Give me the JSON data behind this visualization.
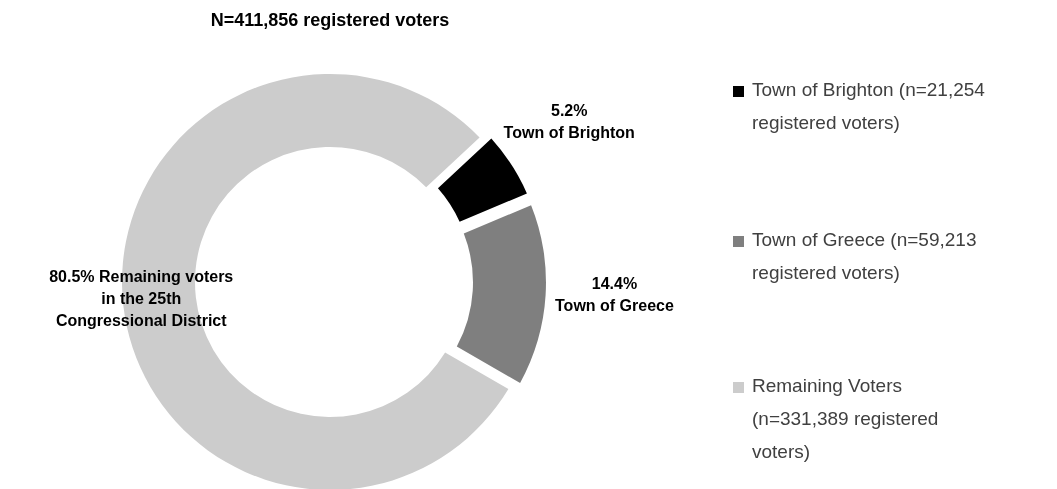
{
  "chart_data": {
    "type": "donut",
    "title": "N=411,856  registered voters",
    "categories": [
      "Town of Brighton (n=21,254 registered voters)",
      "Town of Greece (n=59,213 registered voters)",
      "Remaining Voters (n=331,389 registered voters)"
    ],
    "values": [
      5.2,
      14.4,
      80.5
    ],
    "colors": [
      "#000000",
      "#7f7f7f",
      "#cccccc"
    ],
    "value_labels": [
      "5.2%",
      "14.4%",
      "80.5%"
    ],
    "annotations": [
      "Town of Brighton",
      "Town of Greece",
      "Remaining voters in the 25th Congressional District"
    ],
    "legend": "right"
  }
}
